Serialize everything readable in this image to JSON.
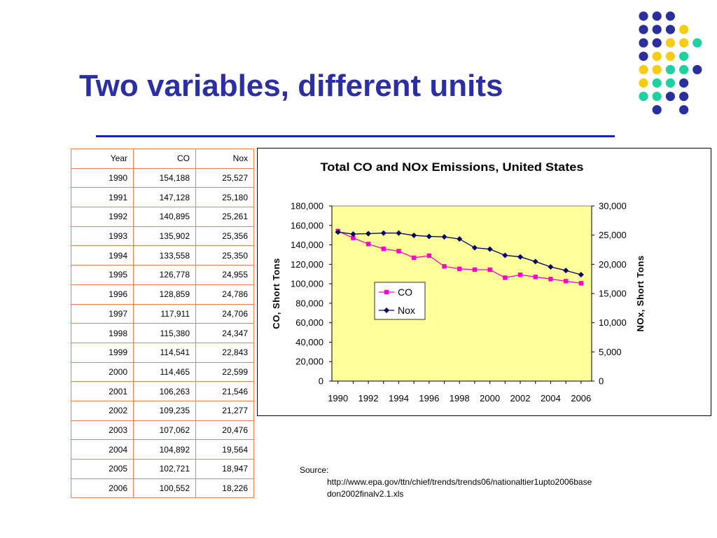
{
  "slide": {
    "title": "Two variables, different units",
    "source_label": "Source:",
    "source_url": "http://www.epa.gov/ttn/chief/trends/trends06/nationaltier1upto2006basedon2002finalv2.1.xls"
  },
  "colors": {
    "title": "#2b2fa3",
    "rule": "#1a1aee",
    "table_border": "#f08050",
    "plot_bg": "#ffff99",
    "co": "#ff00cc",
    "nox": "#000066",
    "dot_navy": "#2b2f9c",
    "dot_yellow": "#f5cc16",
    "dot_teal": "#1dd1a1"
  },
  "decor_dots": [
    [
      "n",
      "n",
      "n",
      "-",
      "-"
    ],
    [
      "n",
      "n",
      "n",
      "y",
      "-"
    ],
    [
      "n",
      "n",
      "y",
      "y",
      "t"
    ],
    [
      "n",
      "y",
      "y",
      "t",
      "-"
    ],
    [
      "y",
      "y",
      "t",
      "t",
      "n"
    ],
    [
      "y",
      "t",
      "t",
      "n",
      "-"
    ],
    [
      "t",
      "t",
      "n",
      "n",
      "-"
    ],
    [
      "-",
      "n",
      "-",
      "n",
      "-"
    ]
  ],
  "table": {
    "headers": [
      "Year",
      "CO",
      "Nox"
    ],
    "rows": [
      [
        "1990",
        "154,188",
        "25,527"
      ],
      [
        "1991",
        "147,128",
        "25,180"
      ],
      [
        "1992",
        "140,895",
        "25,261"
      ],
      [
        "1993",
        "135,902",
        "25,356"
      ],
      [
        "1994",
        "133,558",
        "25,350"
      ],
      [
        "1995",
        "126,778",
        "24,955"
      ],
      [
        "1996",
        "128,859",
        "24,786"
      ],
      [
        "1997",
        "117,911",
        "24,706"
      ],
      [
        "1998",
        "115,380",
        "24,347"
      ],
      [
        "1999",
        "114,541",
        "22,843"
      ],
      [
        "2000",
        "114,465",
        "22,599"
      ],
      [
        "2001",
        "106,263",
        "21,546"
      ],
      [
        "2002",
        "109,235",
        "21,277"
      ],
      [
        "2003",
        "107,062",
        "20,476"
      ],
      [
        "2004",
        "104,892",
        "19,564"
      ],
      [
        "2005",
        "102,721",
        "18,947"
      ],
      [
        "2006",
        "100,552",
        "18,226"
      ]
    ]
  },
  "chart_data": {
    "type": "line",
    "title": "Total CO and NOx Emissions, United States",
    "x": [
      1990,
      1991,
      1992,
      1993,
      1994,
      1995,
      1996,
      1997,
      1998,
      1999,
      2000,
      2001,
      2002,
      2003,
      2004,
      2005,
      2006
    ],
    "x_tick_labels": [
      "1990",
      "1992",
      "1994",
      "1996",
      "1998",
      "2000",
      "2002",
      "2004",
      "2006"
    ],
    "x_tick_values": [
      1990,
      1992,
      1994,
      1996,
      1998,
      2000,
      2002,
      2004,
      2006
    ],
    "ylabel": "CO, Short Tons",
    "ylim": [
      0,
      180000
    ],
    "y_tick_labels": [
      "0",
      "20,000",
      "40,000",
      "60,000",
      "80,000",
      "100,000",
      "120,000",
      "140,000",
      "160,000",
      "180,000"
    ],
    "y2label": "NOx, Short Tons",
    "y2lim": [
      0,
      30000
    ],
    "y2_tick_labels": [
      "0",
      "5,000",
      "10,000",
      "15,000",
      "20,000",
      "25,000",
      "30,000"
    ],
    "grid": false,
    "legend_position": "center",
    "series": [
      {
        "name": "CO",
        "axis": "left",
        "marker": "square",
        "color": "#ff00cc",
        "values": [
          154188,
          147128,
          140895,
          135902,
          133558,
          126778,
          128859,
          117911,
          115380,
          114541,
          114465,
          106263,
          109235,
          107062,
          104892,
          102721,
          100552
        ]
      },
      {
        "name": "Nox",
        "axis": "right",
        "marker": "diamond",
        "color": "#000066",
        "values": [
          25527,
          25180,
          25261,
          25356,
          25350,
          24955,
          24786,
          24706,
          24347,
          22843,
          22599,
          21546,
          21277,
          20476,
          19564,
          18947,
          18226
        ]
      }
    ]
  }
}
